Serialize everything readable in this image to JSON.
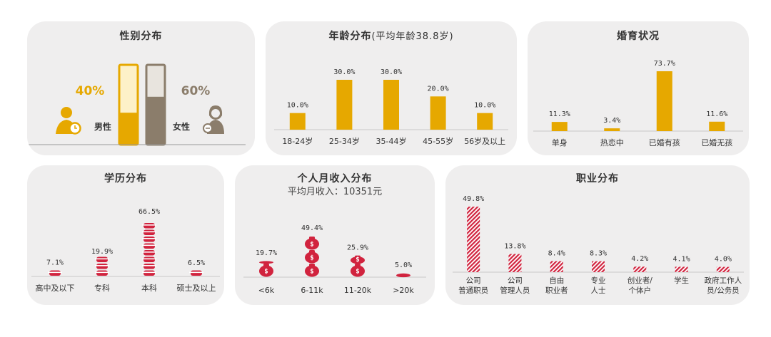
{
  "colors": {
    "gold": "#e6a800",
    "red": "#d1233e",
    "panel": "#efeeee",
    "brownGray": "#8b7d6b"
  },
  "gender": {
    "title": "性别分布",
    "male": {
      "label": "男性",
      "percent": "40%",
      "value": 40
    },
    "female": {
      "label": "女性",
      "percent": "60%",
      "value": 60
    }
  },
  "chart_data": [
    {
      "type": "bar",
      "id": "age",
      "title": "年龄分布",
      "subtitle": "(平均年龄38.8岁)",
      "categories": [
        "18-24岁",
        "25-34岁",
        "35-44岁",
        "45-55岁",
        "56岁及以上"
      ],
      "values": [
        10.0,
        30.0,
        30.0,
        20.0,
        10.0
      ],
      "labels": [
        "10.0%",
        "30.0%",
        "30.0%",
        "20.0%",
        "10.0%"
      ]
    },
    {
      "type": "bar",
      "id": "marital",
      "title": "婚育状况",
      "categories": [
        "单身",
        "热恋中",
        "已婚有孩",
        "已婚无孩"
      ],
      "values": [
        11.3,
        3.4,
        73.7,
        11.6
      ],
      "labels": [
        "11.3%",
        "3.4%",
        "73.7%",
        "11.6%"
      ]
    },
    {
      "type": "bar",
      "id": "education",
      "title": "学历分布",
      "categories": [
        "高中及以下",
        "专科",
        "本科",
        "硕士及以上"
      ],
      "values": [
        7.1,
        19.9,
        66.5,
        6.5
      ],
      "labels": [
        "7.1%",
        "19.9%",
        "66.5%",
        "6.5%"
      ]
    },
    {
      "type": "bar",
      "id": "income",
      "title": "个人月收入分布",
      "subtitle": "平均月收入：10351元",
      "categories": [
        "<6k",
        "6-11k",
        "11-20k",
        ">20k"
      ],
      "values": [
        19.7,
        49.4,
        25.9,
        5.0
      ],
      "labels": [
        "19.7%",
        "49.4%",
        "25.9%",
        "5.0%"
      ]
    },
    {
      "type": "bar",
      "id": "occupation",
      "title": "职业分布",
      "categories": [
        [
          "公司",
          "普通职员"
        ],
        [
          "公司",
          "管理人员"
        ],
        [
          "自由",
          "职业者"
        ],
        [
          "专业",
          "人士"
        ],
        [
          "创业者/",
          "个体户"
        ],
        [
          "学生"
        ],
        [
          "政府工作人",
          "员/公务员"
        ]
      ],
      "values": [
        49.8,
        13.8,
        8.4,
        8.3,
        4.2,
        4.1,
        4.0
      ],
      "labels": [
        "49.8%",
        "13.8%",
        "8.4%",
        "8.3%",
        "4.2%",
        "4.1%",
        "4.0%"
      ]
    }
  ]
}
